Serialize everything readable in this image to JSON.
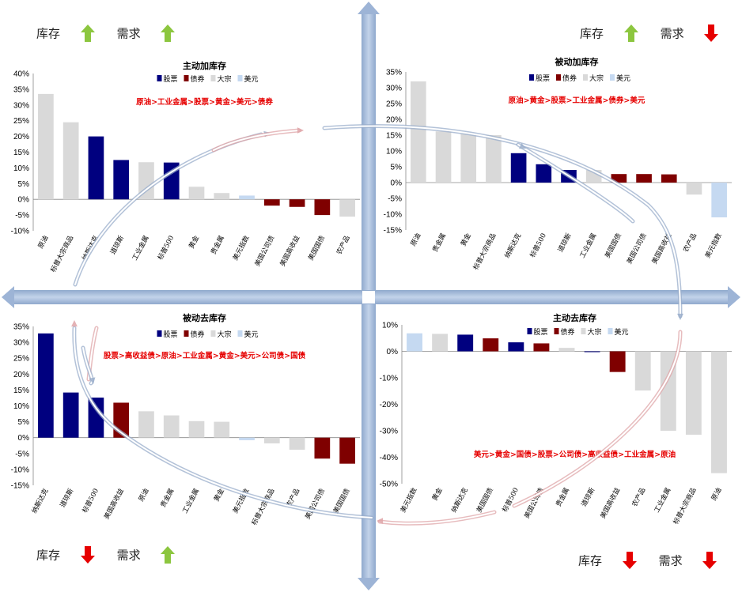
{
  "colors": {
    "stock": "#00007f",
    "bond": "#7f0000",
    "commodity": "#d9d9d9",
    "usd": "#c5d9f1",
    "axis_band": "#a8bfdc",
    "up_arrow": "#8cc63f",
    "down_arrow": "#e60000",
    "note_text": "#e60000"
  },
  "quadrant_labels": {
    "top_left": {
      "inventory": "库存",
      "demand": "需求",
      "inventory_arrow": "up-arrow-icon",
      "demand_arrow": "up-arrow-icon"
    },
    "top_right": {
      "inventory": "库存",
      "demand": "需求",
      "inventory_arrow": "up-arrow-icon",
      "demand_arrow": "down-arrow-icon"
    },
    "bottom_left": {
      "inventory": "库存",
      "demand": "需求",
      "inventory_arrow": "down-arrow-icon",
      "demand_arrow": "up-arrow-icon"
    },
    "bottom_right": {
      "inventory": "库存",
      "demand": "需求",
      "inventory_arrow": "down-arrow-icon",
      "demand_arrow": "down-arrow-icon"
    }
  },
  "legend_names": [
    "股票",
    "债券",
    "大宗",
    "美元"
  ],
  "chart_data": [
    {
      "type": "bar",
      "title": "主动加库存",
      "note": "原油>工业金属>股票>黄金>美元>债券",
      "ylim": [
        -10,
        40
      ],
      "ytick_step": 5,
      "categories": [
        "原油",
        "标普大宗商品",
        "纳斯达克",
        "道琼斯",
        "工业金属",
        "标普500",
        "黄金",
        "贵金属",
        "美元指数",
        "美国公司债",
        "美国高收益",
        "美国国债",
        "农产品"
      ],
      "groups": [
        "commodity",
        "commodity",
        "stock",
        "stock",
        "commodity",
        "stock",
        "commodity",
        "commodity",
        "usd",
        "bond",
        "bond",
        "bond",
        "commodity"
      ],
      "values": [
        33.5,
        24.5,
        20,
        12.5,
        11.8,
        11.7,
        4,
        2,
        1.2,
        -2,
        -2.4,
        -5,
        -5.5
      ],
      "grid": false,
      "legend": "top"
    },
    {
      "type": "bar",
      "title": "被动加库存",
      "note": "原油>黄金>股票>工业金属>债券>美元",
      "ylim": [
        -15,
        35
      ],
      "ytick_step": 5,
      "categories": [
        "原油",
        "贵金属",
        "黄金",
        "标普大宗商品",
        "纳斯达克",
        "标普500",
        "道琼斯",
        "工业金属",
        "美国国债",
        "美国公司债",
        "美国高收益",
        "农产品",
        "美元指数"
      ],
      "groups": [
        "commodity",
        "commodity",
        "commodity",
        "commodity",
        "stock",
        "stock",
        "stock",
        "commodity",
        "bond",
        "bond",
        "bond",
        "commodity",
        "usd"
      ],
      "values": [
        32,
        16.2,
        15.5,
        15,
        9.3,
        5.8,
        4,
        4,
        2.7,
        2.7,
        2.6,
        -3.8,
        -11
      ],
      "grid": false,
      "legend": "top"
    },
    {
      "type": "bar",
      "title": "被动去库存",
      "note": "股票>高收益债>原油>工业金属>黄金>美元>公司债>国债",
      "ylim": [
        -15,
        35
      ],
      "ytick_step": 5,
      "categories": [
        "纳斯达克",
        "道琼斯",
        "标普500",
        "美国高收益",
        "原油",
        "贵金属",
        "工业金属",
        "黄金",
        "美元指数",
        "标普大宗商品",
        "农产品",
        "美国公司债",
        "美国国债"
      ],
      "groups": [
        "stock",
        "stock",
        "stock",
        "bond",
        "commodity",
        "commodity",
        "commodity",
        "commodity",
        "usd",
        "commodity",
        "commodity",
        "bond",
        "bond"
      ],
      "values": [
        32.8,
        14.2,
        12.6,
        11,
        8.3,
        7,
        5.2,
        5,
        -0.8,
        -1.8,
        -3.8,
        -6.6,
        -8.2
      ],
      "grid": false,
      "legend": "top"
    },
    {
      "type": "bar",
      "title": "主动去库存",
      "note": "美元>黄金>国债>股票>公司债>高收益债>工业金属>原油",
      "ylim": [
        -50,
        10
      ],
      "ytick_step": 10,
      "categories": [
        "美元指数",
        "黄金",
        "纳斯达克",
        "美国国债",
        "标普500",
        "美国公司债",
        "贵金属",
        "道琼斯",
        "美国高收益",
        "农产品",
        "工业金属",
        "标普大宗商品",
        "原油"
      ],
      "groups": [
        "usd",
        "commodity",
        "stock",
        "bond",
        "stock",
        "bond",
        "commodity",
        "stock",
        "bond",
        "commodity",
        "commodity",
        "commodity",
        "commodity"
      ],
      "values": [
        6.8,
        6.6,
        6.3,
        4.9,
        3.4,
        3,
        1.3,
        -0.3,
        -7.8,
        -14.8,
        -30,
        -31.5,
        -46
      ],
      "grid": false,
      "legend": "top"
    }
  ]
}
